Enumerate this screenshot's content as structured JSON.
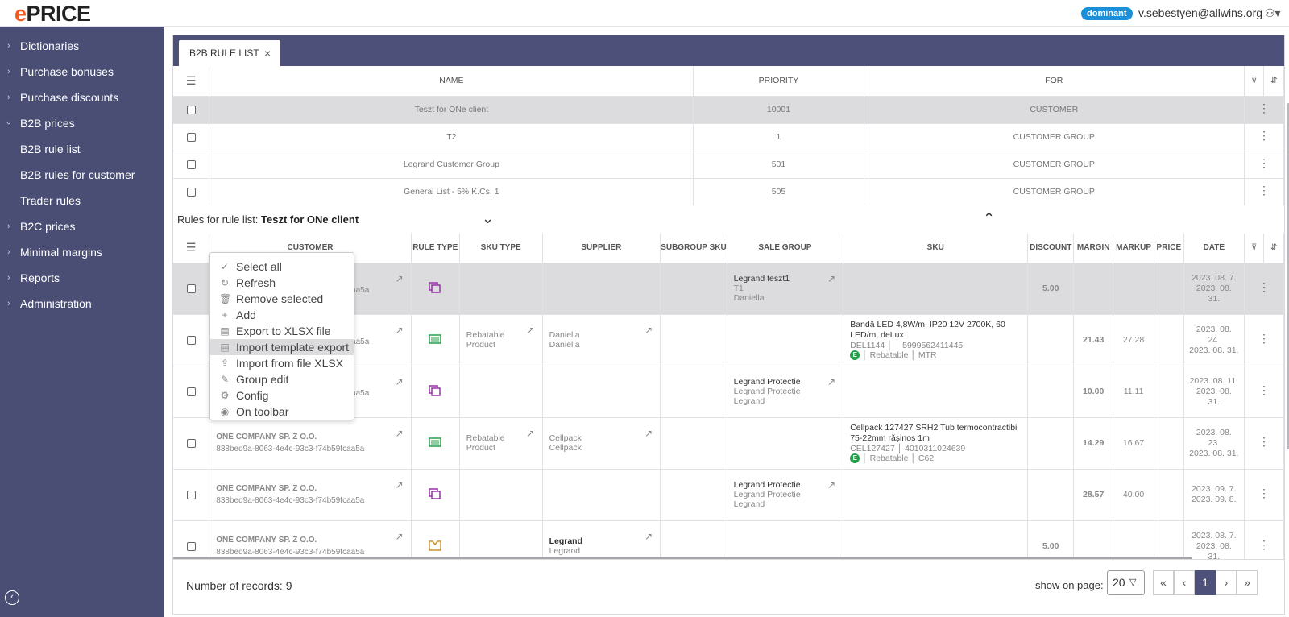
{
  "header": {
    "logo_e": "e",
    "logo_rest": "PRICE",
    "badge": "dominant",
    "user": "v.sebestyen@allwins.org"
  },
  "sidebar": {
    "items": [
      {
        "label": "Dictionaries",
        "chev": "›"
      },
      {
        "label": "Purchase bonuses",
        "chev": "›"
      },
      {
        "label": "Purchase discounts",
        "chev": "›"
      },
      {
        "label": "B2B prices",
        "chev": "‹"
      },
      {
        "label": "B2B rule list",
        "chev": ""
      },
      {
        "label": "B2B rules for customer",
        "chev": ""
      },
      {
        "label": "Trader rules",
        "chev": ""
      },
      {
        "label": "B2C prices",
        "chev": "›"
      },
      {
        "label": "Minimal margins",
        "chev": "›"
      },
      {
        "label": "Reports",
        "chev": "›"
      },
      {
        "label": "Administration",
        "chev": "›"
      }
    ]
  },
  "tab": {
    "label": "B2B RULE LIST",
    "close": "×"
  },
  "rule_list": {
    "headers": {
      "name": "NAME",
      "priority": "PRIORITY",
      "for": "FOR"
    },
    "rows": [
      {
        "name": "Teszt for ONe client",
        "priority": "10001",
        "for": "CUSTOMER"
      },
      {
        "name": "T2",
        "priority": "1",
        "for": "CUSTOMER GROUP"
      },
      {
        "name": "Legrand Customer Group",
        "priority": "501",
        "for": "CUSTOMER GROUP"
      },
      {
        "name": "General List - 5% K.Cs. 1",
        "priority": "505",
        "for": "CUSTOMER GROUP"
      }
    ]
  },
  "rules_for": {
    "prefix": "Rules for rule list:",
    "name": "Teszt for ONe client"
  },
  "rules": {
    "headers": {
      "customer": "CUSTOMER",
      "rule_type": "RULE TYPE",
      "sku_type": "SKU TYPE",
      "supplier": "SUPPLIER",
      "subgroup_sku": "SUBGROUP SKU",
      "sale_group": "SALE GROUP",
      "sku": "SKU",
      "discount": "DISCOUNT",
      "margin": "MARGIN",
      "markup": "MARKUP",
      "price": "PRICE",
      "date": "DATE"
    },
    "rows": [
      {
        "cust_name": "",
        "cust_id": "fcaa5a",
        "sku_type": "",
        "sku_type_sub": "",
        "supplier": "",
        "supplier_sub": "",
        "sale_group": "Legrand teszt1",
        "sale_sub1": "T1",
        "sale_sub2": "Daniella",
        "sku_name": "",
        "sku_code": "",
        "sku_ean": "",
        "sku_tag": "",
        "sku_unit": "",
        "discount": "5.00",
        "margin": "",
        "markup": "",
        "price": "",
        "date1": "2023. 08. 7.",
        "date2": "2023. 08.",
        "date3": "31."
      },
      {
        "cust_name": "",
        "cust_id": "fcaa5a",
        "sku_type": "Rebatable",
        "sku_type_sub": "Product",
        "supplier": "Daniella",
        "supplier_sub": "Daniella",
        "sale_group": "",
        "sale_sub1": "",
        "sale_sub2": "",
        "sku_name": "Bandă LED 4,8W/m, IP20 12V 2700K, 60 LED/m, deLux",
        "sku_code": "DEL1144",
        "sku_ean": "5999562411445",
        "sku_tag": "Rebatable",
        "sku_unit": "MTR",
        "discount": "",
        "margin": "21.43",
        "markup": "27.28",
        "price": "",
        "date1": "2023. 08.",
        "date2": "24.",
        "date3": "2023. 08. 31."
      },
      {
        "cust_name": "",
        "cust_id": "fcaa5a",
        "sku_type": "",
        "sku_type_sub": "",
        "supplier": "",
        "supplier_sub": "",
        "sale_group": "Legrand Protectie",
        "sale_sub1": "Legrand Protectie",
        "sale_sub2": "Legrand",
        "sku_name": "",
        "sku_code": "",
        "sku_ean": "",
        "sku_tag": "",
        "sku_unit": "",
        "discount": "",
        "margin": "10.00",
        "markup": "11.11",
        "price": "",
        "date1": "2023. 08. 11.",
        "date2": "2023. 08.",
        "date3": "31."
      },
      {
        "cust_name": "ONE COMPANY SP. Z O.O.",
        "cust_id": "838bed9a-8063-4e4c-93c3-f74b59fcaa5a",
        "sku_type": "Rebatable",
        "sku_type_sub": "Product",
        "supplier": "Cellpack",
        "supplier_sub": "Cellpack",
        "sale_group": "",
        "sale_sub1": "",
        "sale_sub2": "",
        "sku_name": "Cellpack 127427 SRH2 Tub termocontractibil 75-22mm rășinos 1m",
        "sku_code": "CEL127427",
        "sku_ean": "4010311024639",
        "sku_tag": "Rebatable",
        "sku_unit": "C62",
        "discount": "",
        "margin": "14.29",
        "markup": "16.67",
        "price": "",
        "date1": "2023. 08.",
        "date2": "23.",
        "date3": "2023. 08. 31."
      },
      {
        "cust_name": "ONE COMPANY SP. Z O.O.",
        "cust_id": "838bed9a-8063-4e4c-93c3-f74b59fcaa5a",
        "sku_type": "",
        "sku_type_sub": "",
        "supplier": "",
        "supplier_sub": "",
        "sale_group": "Legrand Protectie",
        "sale_sub1": "Legrand Protectie",
        "sale_sub2": "Legrand",
        "sku_name": "",
        "sku_code": "",
        "sku_ean": "",
        "sku_tag": "",
        "sku_unit": "",
        "discount": "",
        "margin": "28.57",
        "markup": "40.00",
        "price": "",
        "date1": "2023. 09. 7.",
        "date2": "2023. 09. 8.",
        "date3": ""
      },
      {
        "cust_name": "ONE COMPANY SP. Z O.O.",
        "cust_id": "838bed9a-8063-4e4c-93c3-f74b59fcaa5a",
        "sku_type": "",
        "sku_type_sub": "",
        "supplier": "Legrand",
        "supplier_sub": "Legrand",
        "sale_group": "",
        "sale_sub1": "",
        "sale_sub2": "",
        "sku_name": "",
        "sku_code": "",
        "sku_ean": "",
        "sku_tag": "",
        "sku_unit": "",
        "discount": "5.00",
        "margin": "",
        "markup": "",
        "price": "",
        "date1": "2023. 08. 7.",
        "date2": "2023. 08.",
        "date3": "31."
      }
    ]
  },
  "context_menu": {
    "items": [
      {
        "label": "Select all",
        "icon": "✓"
      },
      {
        "label": "Refresh",
        "icon": "↻"
      },
      {
        "label": "Remove selected",
        "icon": "🗑"
      },
      {
        "label": "Add",
        "icon": "+"
      },
      {
        "label": "Export to XLSX file",
        "icon": "▤"
      },
      {
        "label": "Import template export",
        "icon": "▤"
      },
      {
        "label": "Import from file XLSX",
        "icon": "⇪"
      },
      {
        "label": "Group edit",
        "icon": "✎"
      },
      {
        "label": "Config",
        "icon": "⚙"
      },
      {
        "label": "On toolbar",
        "icon": "◉"
      }
    ]
  },
  "footer": {
    "records": "Number of records: 9",
    "show_on_page": "show on page:",
    "page_size": "20",
    "pages": [
      "«",
      "‹",
      "1",
      "›",
      "»"
    ]
  },
  "colors": {
    "sidebar": "#4a4e75",
    "accent_orange": "#f15a22",
    "badge": "#1b8fd8",
    "rule_icon_purple": "#9b2fae",
    "rule_icon_green": "#24a148",
    "rule_icon_gold": "#c8952b"
  }
}
